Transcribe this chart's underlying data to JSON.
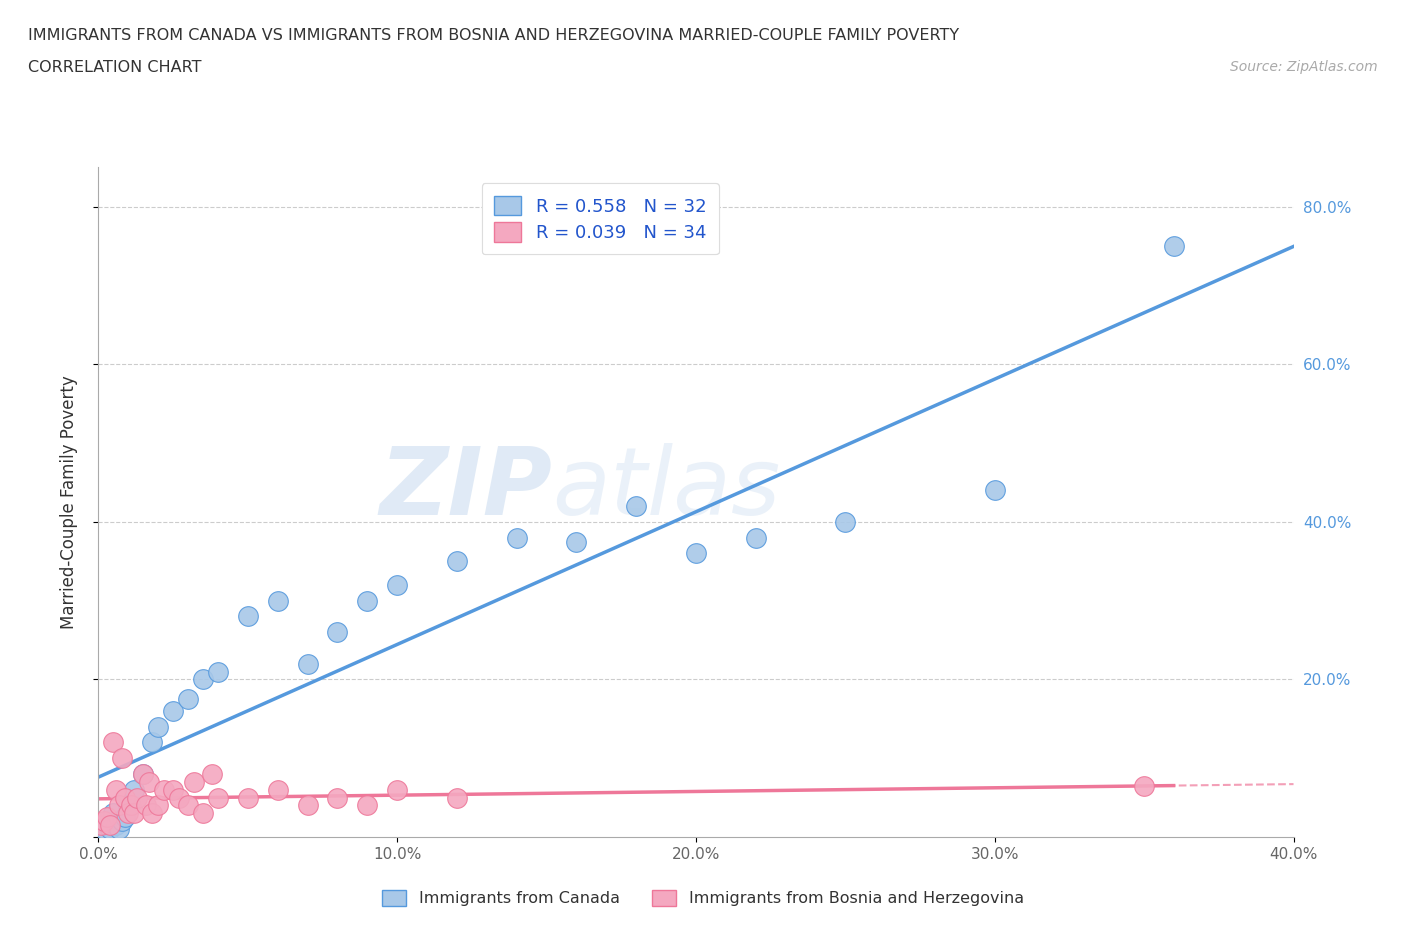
{
  "title_line1": "IMMIGRANTS FROM CANADA VS IMMIGRANTS FROM BOSNIA AND HERZEGOVINA MARRIED-COUPLE FAMILY POVERTY",
  "title_line2": "CORRELATION CHART",
  "source": "Source: ZipAtlas.com",
  "ylabel": "Married-Couple Family Poverty",
  "xlim": [
    0.0,
    0.4
  ],
  "ylim": [
    0.0,
    0.85
  ],
  "xticks": [
    0.0,
    0.1,
    0.2,
    0.3,
    0.4
  ],
  "yticks": [
    0.0,
    0.2,
    0.4,
    0.6,
    0.8
  ],
  "xticklabels": [
    "0.0%",
    "10.0%",
    "20.0%",
    "30.0%",
    "40.0%"
  ],
  "yticklabels": [
    "",
    "20.0%",
    "40.0%",
    "60.0%",
    "80.0%"
  ],
  "color_canada": "#a8c8e8",
  "color_bosnia": "#f4a8c0",
  "line_color_canada": "#5599dd",
  "line_color_bosnia": "#ee7799",
  "R_canada": 0.558,
  "N_canada": 32,
  "R_bosnia": 0.039,
  "N_bosnia": 34,
  "watermark_zip": "ZIP",
  "watermark_atlas": "atlas",
  "canada_x": [
    0.002,
    0.003,
    0.004,
    0.005,
    0.006,
    0.007,
    0.008,
    0.009,
    0.01,
    0.012,
    0.015,
    0.018,
    0.02,
    0.025,
    0.03,
    0.035,
    0.04,
    0.05,
    0.06,
    0.07,
    0.08,
    0.09,
    0.1,
    0.12,
    0.14,
    0.16,
    0.18,
    0.2,
    0.22,
    0.25,
    0.3,
    0.36
  ],
  "canada_y": [
    0.01,
    0.02,
    0.01,
    0.03,
    0.015,
    0.01,
    0.02,
    0.025,
    0.04,
    0.06,
    0.08,
    0.12,
    0.14,
    0.16,
    0.175,
    0.2,
    0.21,
    0.28,
    0.3,
    0.22,
    0.26,
    0.3,
    0.32,
    0.35,
    0.38,
    0.375,
    0.42,
    0.36,
    0.38,
    0.4,
    0.44,
    0.75
  ],
  "bosnia_x": [
    0.001,
    0.002,
    0.003,
    0.004,
    0.005,
    0.006,
    0.007,
    0.008,
    0.009,
    0.01,
    0.011,
    0.012,
    0.013,
    0.015,
    0.016,
    0.017,
    0.018,
    0.02,
    0.022,
    0.025,
    0.027,
    0.03,
    0.032,
    0.035,
    0.038,
    0.04,
    0.05,
    0.06,
    0.07,
    0.08,
    0.09,
    0.1,
    0.12,
    0.35
  ],
  "bosnia_y": [
    0.015,
    0.02,
    0.025,
    0.015,
    0.12,
    0.06,
    0.04,
    0.1,
    0.05,
    0.03,
    0.04,
    0.03,
    0.05,
    0.08,
    0.04,
    0.07,
    0.03,
    0.04,
    0.06,
    0.06,
    0.05,
    0.04,
    0.07,
    0.03,
    0.08,
    0.05,
    0.05,
    0.06,
    0.04,
    0.05,
    0.04,
    0.06,
    0.05,
    0.065
  ],
  "legend_bottom_labels": [
    "Immigrants from Canada",
    "Immigrants from Bosnia and Herzegovina"
  ]
}
